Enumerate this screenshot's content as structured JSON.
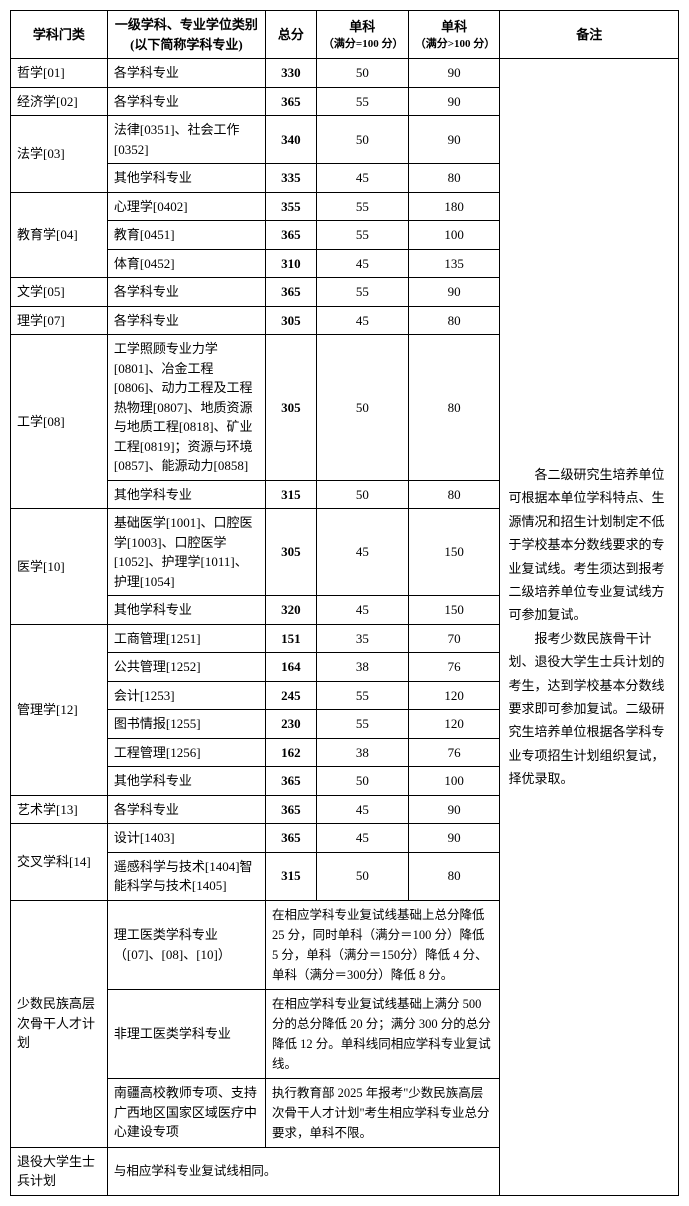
{
  "headers": {
    "category": "学科门类",
    "major": "一级学科、专业学位类别\n(以下简称学科专业)",
    "major_l1": "一级学科、专业学位类别",
    "major_l2": "(以下简称学科专业)",
    "total": "总分",
    "s1": "单科",
    "s1_sub": "（满分=100 分）",
    "s2": "单科",
    "s2_sub": "（满分>100 分）",
    "note": "备注"
  },
  "rows": [
    {
      "cat": "哲学[01]",
      "maj": "各学科专业",
      "total": "330",
      "s1": "50",
      "s2": "90"
    },
    {
      "cat": "经济学[02]",
      "maj": "各学科专业",
      "total": "365",
      "s1": "55",
      "s2": "90"
    },
    {
      "cat": "法学[03]",
      "rowspan": 2,
      "maj": "法律[0351]、社会工作[0352]",
      "total": "340",
      "s1": "50",
      "s2": "90"
    },
    {
      "maj": "其他学科专业",
      "total": "335",
      "s1": "45",
      "s2": "80"
    },
    {
      "cat": "教育学[04]",
      "rowspan": 3,
      "maj": "心理学[0402]",
      "total": "355",
      "s1": "55",
      "s2": "180"
    },
    {
      "maj": "教育[0451]",
      "total": "365",
      "s1": "55",
      "s2": "100"
    },
    {
      "maj": "体育[0452]",
      "total": "310",
      "s1": "45",
      "s2": "135"
    },
    {
      "cat": "文学[05]",
      "maj": "各学科专业",
      "total": "365",
      "s1": "55",
      "s2": "90"
    },
    {
      "cat": "理学[07]",
      "maj": "各学科专业",
      "total": "305",
      "s1": "45",
      "s2": "80"
    },
    {
      "cat": "工学[08]",
      "rowspan": 2,
      "maj": "工学照顾专业力学[0801]、冶金工程[0806]、动力工程及工程热物理[0807]、地质资源与地质工程[0818]、矿业工程[0819]；资源与环境[0857]、能源动力[0858]",
      "total": "305",
      "s1": "50",
      "s2": "80"
    },
    {
      "maj": "其他学科专业",
      "total": "315",
      "s1": "50",
      "s2": "80"
    },
    {
      "cat": "医学[10]",
      "rowspan": 2,
      "maj": "基础医学[1001]、口腔医学[1003]、口腔医学[1052]、护理学[1011]、护理[1054]",
      "total": "305",
      "s1": "45",
      "s2": "150"
    },
    {
      "maj": "其他学科专业",
      "total": "320",
      "s1": "45",
      "s2": "150"
    },
    {
      "cat": "管理学[12]",
      "rowspan": 6,
      "maj": "工商管理[1251]",
      "total": "151",
      "s1": "35",
      "s2": "70"
    },
    {
      "maj": "公共管理[1252]",
      "total": "164",
      "s1": "38",
      "s2": "76"
    },
    {
      "maj": "会计[1253]",
      "total": "245",
      "s1": "55",
      "s2": "120"
    },
    {
      "maj": "图书情报[1255]",
      "total": "230",
      "s1": "55",
      "s2": "120"
    },
    {
      "maj": "工程管理[1256]",
      "total": "162",
      "s1": "38",
      "s2": "76"
    },
    {
      "maj": "其他学科专业",
      "total": "365",
      "s1": "50",
      "s2": "100"
    },
    {
      "cat": "艺术学[13]",
      "maj": "各学科专业",
      "total": "365",
      "s1": "45",
      "s2": "90"
    },
    {
      "cat": "交叉学科[14]",
      "rowspan": 2,
      "maj": "设计[1403]",
      "total": "365",
      "s1": "45",
      "s2": "90"
    },
    {
      "maj": "遥感科学与技术[1404]智能科学与技术[1405]",
      "total": "315",
      "s1": "50",
      "s2": "80"
    }
  ],
  "special": [
    {
      "cat": "少数民族高层次骨干人才计划",
      "rowspan": 3,
      "maj": "理工医类学科专业（[07]、[08]、[10]）",
      "desc": "在相应学科专业复试线基础上总分降低 25 分，同时单科（满分＝100 分）降低 5 分，单科（满分＝150分）降低 4 分、单科（满分＝300分）降低 8 分。"
    },
    {
      "maj": "非理工医类学科专业",
      "desc": "在相应学科专业复试线基础上满分 500 分的总分降低 20 分；满分 300 分的总分降低 12 分。单科线同相应学科专业复试线。"
    },
    {
      "maj": "南疆高校教师专项、支持广西地区国家区域医疗中心建设专项",
      "desc": "执行教育部 2025 年报考\"少数民族高层次骨干人才计划\"考生相应学科专业总分要求，单科不限。"
    },
    {
      "cat": "退役大学生士兵计划",
      "maj": "",
      "desc": "与相应学科专业复试线相同。"
    }
  ],
  "note_text": "　　各二级研究生培养单位可根据本单位学科特点、生源情况和招生计划制定不低于学校基本分数线要求的专业复试线。考生须达到报考二级培养单位专业复试线方可参加复试。\n　　报考少数民族骨干计划、退役大学生士兵计划的考生，达到学校基本分数线要求即可参加复试。二级研究生培养单位根据各学科专业专项招生计划组织复试，择优录取。"
}
